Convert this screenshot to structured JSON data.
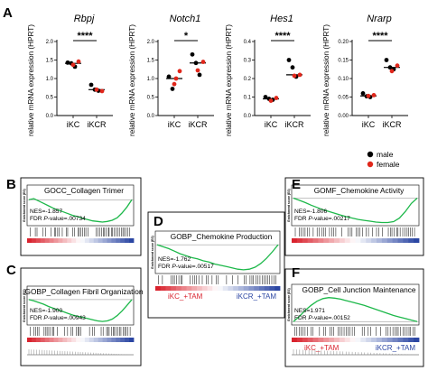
{
  "panel_labels": {
    "a": "A",
    "b": "B",
    "c": "C",
    "d": "D",
    "e": "E",
    "f": "F"
  },
  "chart_data": [
    {
      "type": "scatter",
      "panel": "A",
      "title": "Rbpj",
      "ylabel": "relative mRNA expression (HPRT)",
      "categories": [
        "iKC",
        "iKCR"
      ],
      "ylim": [
        0,
        2.0
      ],
      "yticks": [
        "0.0",
        "0.5",
        "1.0",
        "1.5",
        "2.0"
      ],
      "significance": "****",
      "medians": [
        1.41,
        0.7
      ],
      "points": [
        {
          "group": "iKC",
          "value": 1.43,
          "sex": "male"
        },
        {
          "group": "iKC",
          "value": 1.41,
          "sex": "male"
        },
        {
          "group": "iKC",
          "value": 1.32,
          "sex": "male"
        },
        {
          "group": "iKC",
          "value": 1.46,
          "sex": "female"
        },
        {
          "group": "iKC",
          "value": 1.37,
          "sex": "female"
        },
        {
          "group": "iKCR",
          "value": 0.83,
          "sex": "male"
        },
        {
          "group": "iKCR",
          "value": 0.7,
          "sex": "male"
        },
        {
          "group": "iKCR",
          "value": 0.67,
          "sex": "male"
        },
        {
          "group": "iKCR",
          "value": 0.66,
          "sex": "female"
        },
        {
          "group": "iKCR",
          "value": 0.7,
          "sex": "female"
        }
      ]
    },
    {
      "type": "scatter",
      "panel": "A",
      "title": "Notch1",
      "ylabel": "relative mRNA expression (HPRT)",
      "categories": [
        "iKC",
        "iKCR"
      ],
      "ylim": [
        0,
        2.0
      ],
      "yticks": [
        "0.0",
        "0.5",
        "1.0",
        "1.5",
        "2.0"
      ],
      "significance": "*",
      "medians": [
        1.0,
        1.42
      ],
      "points": [
        {
          "group": "iKC",
          "value": 1.05,
          "sex": "male"
        },
        {
          "group": "iKC",
          "value": 0.72,
          "sex": "male"
        },
        {
          "group": "iKC",
          "value": 1.0,
          "sex": "female"
        },
        {
          "group": "iKC",
          "value": 1.2,
          "sex": "female"
        },
        {
          "group": "iKC",
          "value": 0.85,
          "sex": "female"
        },
        {
          "group": "iKCR",
          "value": 1.65,
          "sex": "male"
        },
        {
          "group": "iKCR",
          "value": 1.42,
          "sex": "male"
        },
        {
          "group": "iKCR",
          "value": 1.1,
          "sex": "male"
        },
        {
          "group": "iKCR",
          "value": 1.45,
          "sex": "female"
        },
        {
          "group": "iKCR",
          "value": 1.22,
          "sex": "female"
        }
      ]
    },
    {
      "type": "scatter",
      "panel": "A",
      "title": "Hes1",
      "ylabel": "relative mRNA expression (HPRT)",
      "categories": [
        "iKC",
        "iKCR"
      ],
      "ylim": [
        0,
        0.4
      ],
      "yticks": [
        "0.0",
        "0.1",
        "0.2",
        "0.3",
        "0.4"
      ],
      "significance": "****",
      "medians": [
        0.09,
        0.22
      ],
      "points": [
        {
          "group": "iKC",
          "value": 0.1,
          "sex": "male"
        },
        {
          "group": "iKC",
          "value": 0.09,
          "sex": "male"
        },
        {
          "group": "iKC",
          "value": 0.085,
          "sex": "male"
        },
        {
          "group": "iKC",
          "value": 0.095,
          "sex": "female"
        },
        {
          "group": "iKC",
          "value": 0.08,
          "sex": "female"
        },
        {
          "group": "iKCR",
          "value": 0.3,
          "sex": "male"
        },
        {
          "group": "iKCR",
          "value": 0.26,
          "sex": "male"
        },
        {
          "group": "iKCR",
          "value": 0.21,
          "sex": "male"
        },
        {
          "group": "iKCR",
          "value": 0.22,
          "sex": "female"
        },
        {
          "group": "iKCR",
          "value": 0.215,
          "sex": "female"
        }
      ]
    },
    {
      "type": "scatter",
      "panel": "A",
      "title": "Nrarp",
      "ylabel": "relative mRNA expression (HPRT)",
      "categories": [
        "iKC",
        "iKCR"
      ],
      "ylim": [
        0,
        0.2
      ],
      "yticks": [
        "0.00",
        "0.05",
        "0.10",
        "0.15",
        "0.20"
      ],
      "significance": "****",
      "medians": [
        0.053,
        0.13
      ],
      "points": [
        {
          "group": "iKC",
          "value": 0.06,
          "sex": "male"
        },
        {
          "group": "iKC",
          "value": 0.052,
          "sex": "male"
        },
        {
          "group": "iKC",
          "value": 0.05,
          "sex": "male"
        },
        {
          "group": "iKC",
          "value": 0.055,
          "sex": "female"
        },
        {
          "group": "iKC",
          "value": 0.053,
          "sex": "female"
        },
        {
          "group": "iKCR",
          "value": 0.15,
          "sex": "male"
        },
        {
          "group": "iKCR",
          "value": 0.13,
          "sex": "male"
        },
        {
          "group": "iKCR",
          "value": 0.125,
          "sex": "male"
        },
        {
          "group": "iKCR",
          "value": 0.135,
          "sex": "female"
        },
        {
          "group": "iKCR",
          "value": 0.12,
          "sex": "female"
        }
      ]
    },
    {
      "type": "line",
      "panel": "B",
      "title": "GOCC_Collagen Trimer",
      "nes": "NES=-1.857",
      "fdr_prefix": "FDR ",
      "fdr_italic": "P",
      "fdr_suffix": "-value=.00734",
      "es_label": "Enrichment score (ES)",
      "groups": [
        "",
        ""
      ],
      "es_curve": [
        0,
        0.02,
        -0.02,
        -0.06,
        -0.1,
        -0.14,
        -0.17,
        -0.2,
        -0.23,
        -0.26,
        -0.28,
        -0.31,
        -0.33,
        -0.35,
        -0.36,
        -0.37,
        -0.36,
        -0.34,
        -0.3,
        -0.22,
        -0.12,
        0.0
      ]
    },
    {
      "type": "line",
      "panel": "C",
      "title": "GOBP_Collagen Fibril Organization",
      "nes": "NES=-1.900",
      "fdr_prefix": "FDR ",
      "fdr_italic": "P",
      "fdr_suffix": "-value=.00943",
      "es_label": "Enrichment score (ES)",
      "groups": [
        "",
        ""
      ],
      "es_curve": [
        0,
        -0.02,
        -0.05,
        -0.08,
        -0.12,
        -0.15,
        -0.18,
        -0.21,
        -0.24,
        -0.27,
        -0.29,
        -0.31,
        -0.33,
        -0.35,
        -0.37,
        -0.38,
        -0.37,
        -0.34,
        -0.28,
        -0.2,
        -0.1,
        0.0
      ]
    },
    {
      "type": "line",
      "panel": "D",
      "title": "GOBP_Chemokine Production",
      "nes": "NES=-1.762",
      "fdr_prefix": "FDR ",
      "fdr_italic": "P",
      "fdr_suffix": "-value=.00517",
      "es_label": "Enrichment score (ES)",
      "groups": [
        "iKC_+TAM",
        "iKCR_+TAM"
      ],
      "es_curve": [
        0,
        -0.03,
        -0.06,
        -0.1,
        -0.14,
        -0.17,
        -0.2,
        -0.22,
        -0.25,
        -0.27,
        -0.3,
        -0.32,
        -0.34,
        -0.36,
        -0.38,
        -0.39,
        -0.38,
        -0.35,
        -0.29,
        -0.21,
        -0.11,
        0.0
      ]
    },
    {
      "type": "line",
      "panel": "E",
      "title": "GOMF_Chemokine Activity",
      "nes": "NES=-1.806",
      "fdr_prefix": "FDR ",
      "fdr_italic": "P",
      "fdr_suffix": "-value=.00217",
      "es_label": "Enrichment score (ES)",
      "groups": [
        "",
        ""
      ],
      "es_curve": [
        0,
        -0.05,
        -0.1,
        -0.16,
        -0.21,
        -0.26,
        -0.3,
        -0.34,
        -0.38,
        -0.42,
        -0.45,
        -0.48,
        -0.5,
        -0.52,
        -0.54,
        -0.55,
        -0.55,
        -0.53,
        -0.45,
        -0.3,
        -0.12,
        0.0
      ]
    },
    {
      "type": "line",
      "panel": "F",
      "title": "GOBP_Cell Junction Maintenance",
      "nes": "NES=1.971",
      "fdr_prefix": "FDR ",
      "fdr_italic": "P",
      "fdr_suffix": "-value=.00152",
      "es_label": "Enrichment score (ES)",
      "groups": [
        "iKC_+TAM",
        "iKCR_+TAM"
      ],
      "es_curve": [
        0,
        0.1,
        0.22,
        0.32,
        0.4,
        0.45,
        0.47,
        0.46,
        0.44,
        0.41,
        0.38,
        0.35,
        0.32,
        0.28,
        0.24,
        0.2,
        0.16,
        0.12,
        0.09,
        0.06,
        0.03,
        0.0
      ]
    }
  ],
  "legend": {
    "items": [
      {
        "label": "male",
        "color": "#000000"
      },
      {
        "label": "female",
        "color": "#e0271b"
      }
    ]
  },
  "colors": {
    "male": "#000000",
    "female": "#e0271b",
    "es_line": "#1db84a",
    "bar_red": "#d9232e",
    "bar_blue": "#2b46a3",
    "median": "#000000"
  }
}
